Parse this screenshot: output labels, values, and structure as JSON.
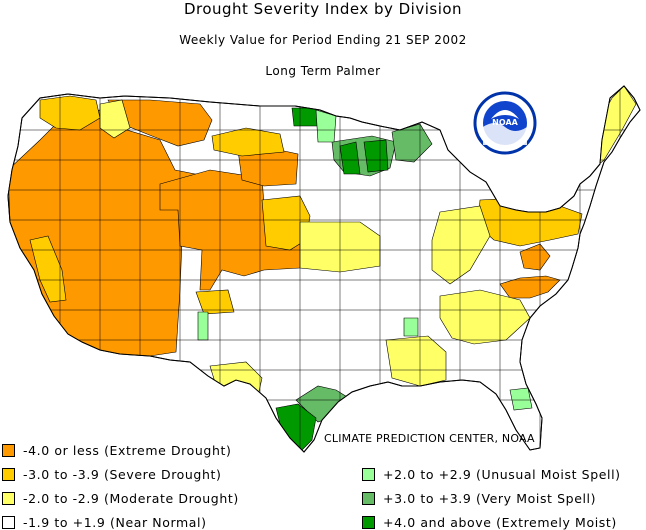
{
  "header": {
    "title": "Drought Severity Index by Division",
    "subtitle": "Weekly Value for Period Ending 21 SEP 2002",
    "index_name": "Long Term Palmer"
  },
  "logo": {
    "text": "NOAA"
  },
  "credit": "CLIMATE PREDICTION CENTER, NOAA",
  "colors": {
    "extreme_drought": "#ff9900",
    "severe_drought": "#ffcc00",
    "moderate_drought": "#ffff66",
    "near_normal": "#ffffff",
    "unusual_moist": "#99ff99",
    "very_moist": "#66bb66",
    "extremely_moist": "#009900"
  },
  "legend": [
    {
      "label": "-4.0 or less (Extreme Drought)",
      "color": "#ff9900"
    },
    {
      "label": "-3.0 to -3.9 (Severe Drought)",
      "color": "#ffcc00"
    },
    {
      "label": "-2.0 to -2.9 (Moderate Drought)",
      "color": "#ffff66"
    },
    {
      "label": "-1.9 to +1.9 (Near Normal)",
      "color": "#ffffff"
    },
    {
      "label": "+2.0 to +2.9 (Unusual Moist Spell)",
      "color": "#99ff99"
    },
    {
      "label": "+3.0 to +3.9 (Very Moist Spell)",
      "color": "#66bb66"
    },
    {
      "label": "+4.0 and above (Extremely Moist)",
      "color": "#009900"
    }
  ]
}
